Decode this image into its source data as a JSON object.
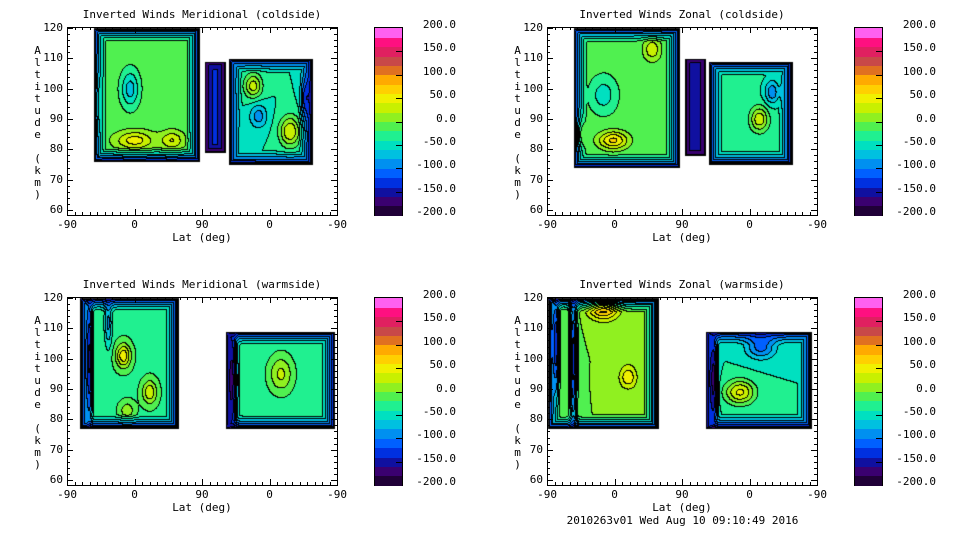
{
  "footer": "2010263v01 Wed Aug 10 09:10:49 2016",
  "colorbar": {
    "tick_labels": [
      "200.0",
      "150.0",
      "100.0",
      "50.0",
      "0.0",
      "-50.0",
      "-100.0",
      "-150.0",
      "-200.0"
    ],
    "range": [
      -200,
      200
    ],
    "levels": 20,
    "colors_low_to_high": [
      "#200038",
      "#3a0070",
      "#1010a0",
      "#0030e0",
      "#0060ff",
      "#0090f0",
      "#00c0e0",
      "#00e0c0",
      "#20f090",
      "#50f050",
      "#90f020",
      "#c8f000",
      "#f0f000",
      "#ffd000",
      "#ffaa00",
      "#e07020",
      "#c84848",
      "#e02060",
      "#ff1080",
      "#ff60f0"
    ]
  },
  "chart_data": [
    {
      "type": "heatmap",
      "title": "Inverted Winds Meridional (coldside)",
      "xlabel": "Lat (deg)",
      "ylabel": "Altitude (km)",
      "xtick_labels": [
        "-90",
        "0",
        "90",
        "0",
        "-90"
      ],
      "ytick_labels": [
        "120",
        "110",
        "100",
        "90",
        "80",
        "70",
        "60"
      ],
      "ylim": [
        60,
        120
      ],
      "sweep_range_deg": [
        0,
        360
      ],
      "regions": [
        {
          "sweep": [
            35,
            177
          ],
          "alt": [
            76,
            120
          ],
          "base": -10
        },
        {
          "sweep": [
            184,
            211
          ],
          "alt": [
            79,
            109
          ],
          "base": -120
        },
        {
          "sweep": [
            215,
            327
          ],
          "alt": [
            75,
            110
          ],
          "base": -40
        }
      ],
      "features": [
        {
          "sweep": 90,
          "alt": 83,
          "value": 60,
          "w": [
            25,
            3
          ]
        },
        {
          "sweep": 140,
          "alt": 83,
          "value": 50,
          "w": [
            15,
            3
          ]
        },
        {
          "sweep": 84,
          "alt": 100,
          "value": -60,
          "w": [
            12,
            6
          ]
        },
        {
          "sweep": 40,
          "alt": 95,
          "value": 50,
          "w": [
            5,
            10
          ]
        },
        {
          "sweep": 248,
          "alt": 101,
          "value": 70,
          "w": [
            12,
            4
          ]
        },
        {
          "sweep": 297,
          "alt": 86,
          "value": 80,
          "w": [
            14,
            5
          ]
        },
        {
          "sweep": 255,
          "alt": 91,
          "value": -50,
          "w": [
            12,
            4
          ]
        },
        {
          "sweep": 318,
          "alt": 97,
          "value": -70,
          "w": [
            6,
            6
          ]
        }
      ]
    },
    {
      "type": "heatmap",
      "title": "Inverted Winds Zonal (coldside)",
      "xlabel": "Lat (deg)",
      "ylabel": "Altitude (km)",
      "xtick_labels": [
        "-90",
        "0",
        "90",
        "0",
        "-90"
      ],
      "ytick_labels": [
        "120",
        "110",
        "100",
        "90",
        "80",
        "70",
        "60"
      ],
      "ylim": [
        60,
        120
      ],
      "sweep_range_deg": [
        0,
        360
      ],
      "regions": [
        {
          "sweep": [
            35,
            177
          ],
          "alt": [
            74,
            120
          ],
          "base": -15
        },
        {
          "sweep": [
            184,
            211
          ],
          "alt": [
            78,
            110
          ],
          "base": -130
        },
        {
          "sweep": [
            215,
            327
          ],
          "alt": [
            75,
            109
          ],
          "base": -35
        }
      ],
      "features": [
        {
          "sweep": 88,
          "alt": 83,
          "value": 80,
          "w": [
            20,
            3
          ]
        },
        {
          "sweep": 140,
          "alt": 113,
          "value": 50,
          "w": [
            12,
            4
          ]
        },
        {
          "sweep": 75,
          "alt": 98,
          "value": -40,
          "w": [
            15,
            5
          ]
        },
        {
          "sweep": 45,
          "alt": 85,
          "value": 60,
          "w": [
            6,
            5
          ]
        },
        {
          "sweep": 283,
          "alt": 90,
          "value": 70,
          "w": [
            12,
            4
          ]
        },
        {
          "sweep": 300,
          "alt": 99,
          "value": -60,
          "w": [
            10,
            4
          ]
        }
      ]
    },
    {
      "type": "heatmap",
      "title": "Inverted Winds Meridional (warmside)",
      "xlabel": "Lat (deg)",
      "ylabel": "Altitude (km)",
      "xtick_labels": [
        "-90",
        "0",
        "90",
        "0",
        "-90"
      ],
      "ytick_labels": [
        "120",
        "110",
        "100",
        "90",
        "80",
        "70",
        "60"
      ],
      "ylim": [
        60,
        120
      ],
      "sweep_range_deg": [
        0,
        360
      ],
      "regions": [
        {
          "sweep": [
            17,
            148
          ],
          "alt": [
            77,
            120
          ],
          "base": -25
        },
        {
          "sweep": [
            212,
            357
          ],
          "alt": [
            77,
            109
          ],
          "base": -30
        }
      ],
      "features": [
        {
          "sweep": 75,
          "alt": 101,
          "value": 80,
          "w": [
            10,
            4
          ]
        },
        {
          "sweep": 110,
          "alt": 89,
          "value": 60,
          "w": [
            10,
            4
          ]
        },
        {
          "sweep": 80,
          "alt": 83,
          "value": 40,
          "w": [
            10,
            3
          ]
        },
        {
          "sweep": 30,
          "alt": 100,
          "value": -110,
          "w": [
            4,
            20
          ]
        },
        {
          "sweep": 55,
          "alt": 112,
          "value": -60,
          "w": [
            5,
            8
          ]
        },
        {
          "sweep": 220,
          "alt": 93,
          "value": -120,
          "w": [
            6,
            20
          ]
        },
        {
          "sweep": 285,
          "alt": 95,
          "value": 55,
          "w": [
            16,
            6
          ]
        }
      ]
    },
    {
      "type": "heatmap",
      "title": "Inverted Winds Zonal (warmside)",
      "xlabel": "Lat (deg)",
      "ylabel": "Altitude (km)",
      "xtick_labels": [
        "-90",
        "0",
        "90",
        "0",
        "-90"
      ],
      "ytick_labels": [
        "120",
        "110",
        "100",
        "90",
        "80",
        "70",
        "60"
      ],
      "ylim": [
        60,
        120
      ],
      "sweep_range_deg": [
        0,
        360
      ],
      "regions": [
        {
          "sweep": [
            1,
            148
          ],
          "alt": [
            77,
            120
          ],
          "base": 0
        },
        {
          "sweep": [
            212,
            353
          ],
          "alt": [
            77,
            109
          ],
          "base": -40
        }
      ],
      "features": [
        {
          "sweep": 75,
          "alt": 117,
          "value": 100,
          "w": [
            20,
            4
          ]
        },
        {
          "sweep": 108,
          "alt": 94,
          "value": 55,
          "w": [
            12,
            4
          ]
        },
        {
          "sweep": 35,
          "alt": 100,
          "value": -130,
          "w": [
            5,
            25
          ]
        },
        {
          "sweep": 12,
          "alt": 105,
          "value": -120,
          "w": [
            4,
            15
          ]
        },
        {
          "sweep": 257,
          "alt": 89,
          "value": 85,
          "w": [
            20,
            4
          ]
        },
        {
          "sweep": 285,
          "alt": 104,
          "value": -70,
          "w": [
            20,
            4
          ]
        },
        {
          "sweep": 222,
          "alt": 93,
          "value": -120,
          "w": [
            5,
            15
          ]
        }
      ]
    }
  ]
}
